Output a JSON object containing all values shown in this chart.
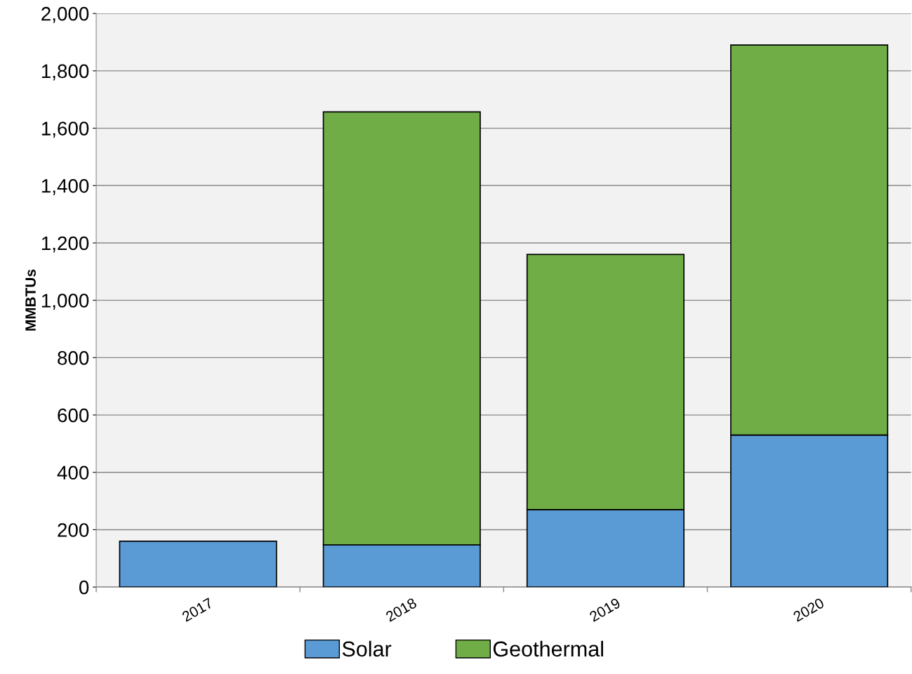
{
  "chart_data": {
    "type": "bar",
    "stacked": true,
    "ylabel": "MMBTUs",
    "categories": [
      "2017",
      "2018",
      "2019",
      "2020"
    ],
    "series": [
      {
        "name": "Solar",
        "color": "#5b9bd5",
        "values": [
          160,
          147,
          270,
          530
        ]
      },
      {
        "name": "Geothermal",
        "color": "#70ad47",
        "values": [
          null,
          1510,
          890,
          1360
        ]
      }
    ],
    "ylim": [
      0,
      2000
    ],
    "yticks": [
      {
        "value": 0,
        "label": "0"
      },
      {
        "value": 200,
        "label": "200"
      },
      {
        "value": 400,
        "label": "400"
      },
      {
        "value": 600,
        "label": "600"
      },
      {
        "value": 800,
        "label": "800"
      },
      {
        "value": 1000,
        "label": "1,000"
      },
      {
        "value": 1200,
        "label": "1,200"
      },
      {
        "value": 1400,
        "label": "1,400"
      },
      {
        "value": 1600,
        "label": "1,600"
      },
      {
        "value": 1800,
        "label": "1,800"
      },
      {
        "value": 2000,
        "label": "2,000"
      }
    ],
    "grid": "y",
    "legend": "bottom"
  }
}
